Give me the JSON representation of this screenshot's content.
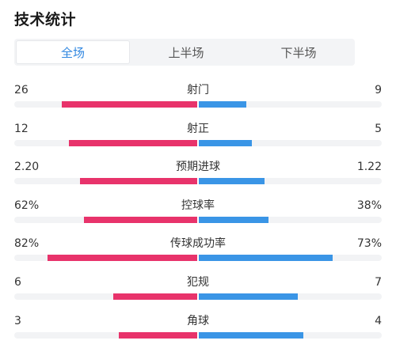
{
  "header": {
    "title": "技术统计"
  },
  "tabs": [
    {
      "label": "全场",
      "active": true
    },
    {
      "label": "上半场",
      "active": false
    },
    {
      "label": "下半场",
      "active": false
    }
  ],
  "colors": {
    "home": "#e8336b",
    "away": "#3a95e6",
    "accent": "#2f86e0",
    "track": "#f2f3f5"
  },
  "stats": [
    {
      "label": "射门",
      "home": "26",
      "away": "9",
      "home_share": 0.74,
      "away_share": 0.26
    },
    {
      "label": "射正",
      "home": "12",
      "away": "5",
      "home_share": 0.7,
      "away_share": 0.29
    },
    {
      "label": "预期进球",
      "home": "2.20",
      "away": "1.22",
      "home_share": 0.64,
      "away_share": 0.36
    },
    {
      "label": "控球率",
      "home": "62%",
      "away": "38%",
      "home_share": 0.62,
      "away_share": 0.38
    },
    {
      "label": "传球成功率",
      "home": "82%",
      "away": "73%",
      "home_share": 0.82,
      "away_share": 0.73
    },
    {
      "label": "犯规",
      "home": "6",
      "away": "7",
      "home_share": 0.46,
      "away_share": 0.54
    },
    {
      "label": "角球",
      "home": "3",
      "away": "4",
      "home_share": 0.43,
      "away_share": 0.57
    }
  ]
}
